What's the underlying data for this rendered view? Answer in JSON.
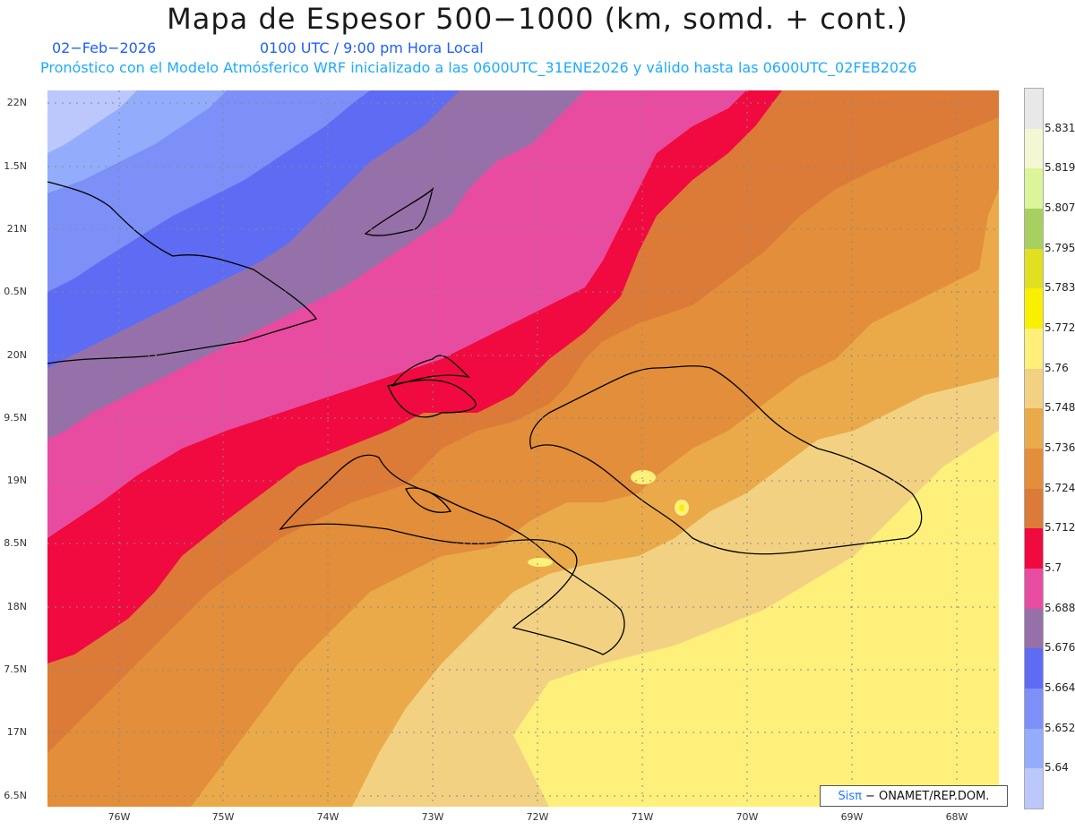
{
  "header": {
    "title": "Mapa de Espesor 500−1000 (km, somd. + cont.)",
    "date": "02−Feb−2026",
    "time": "0100 UTC / 9:00 pm Hora Local",
    "subtitle": "Pronóstico con el Modelo Atmósferico WRF inicializado a las 0600UTC_31ENE2026 y válido hasta las  0600UTC_02FEB2026"
  },
  "axes": {
    "lat_labels": [
      "22N",
      "1.5N",
      "21N",
      "0.5N",
      "20N",
      "9.5N",
      "19N",
      "8.5N",
      "18N",
      "7.5N",
      "17N",
      "6.5N"
    ],
    "lon_labels": [
      "76W",
      "75W",
      "74W",
      "73W",
      "72W",
      "71W",
      "70W",
      "69W",
      "68W"
    ]
  },
  "colorbar": {
    "labels": [
      "5.831",
      "5.819",
      "5.807",
      "5.795",
      "5.783",
      "5.772",
      "5.76",
      "5.748",
      "5.736",
      "5.724",
      "5.712",
      "5.7",
      "5.688",
      "5.676",
      "5.664",
      "5.652",
      "5.64"
    ],
    "colors": [
      "#e8e8e8",
      "#f4f8d2",
      "#dcf49a",
      "#a8d060",
      "#e0e020",
      "#f8f000",
      "#fff07c",
      "#f2d282",
      "#eaaa4a",
      "#e38e3a",
      "#dc7a38",
      "#f00a40",
      "#e84ca0",
      "#9670a8",
      "#5e6cf4",
      "#7c90f8",
      "#94acfc",
      "#bcc8fc"
    ]
  },
  "credit": {
    "sis": "Sisπ",
    "text": "− ONAMET/REP.DOM."
  }
}
